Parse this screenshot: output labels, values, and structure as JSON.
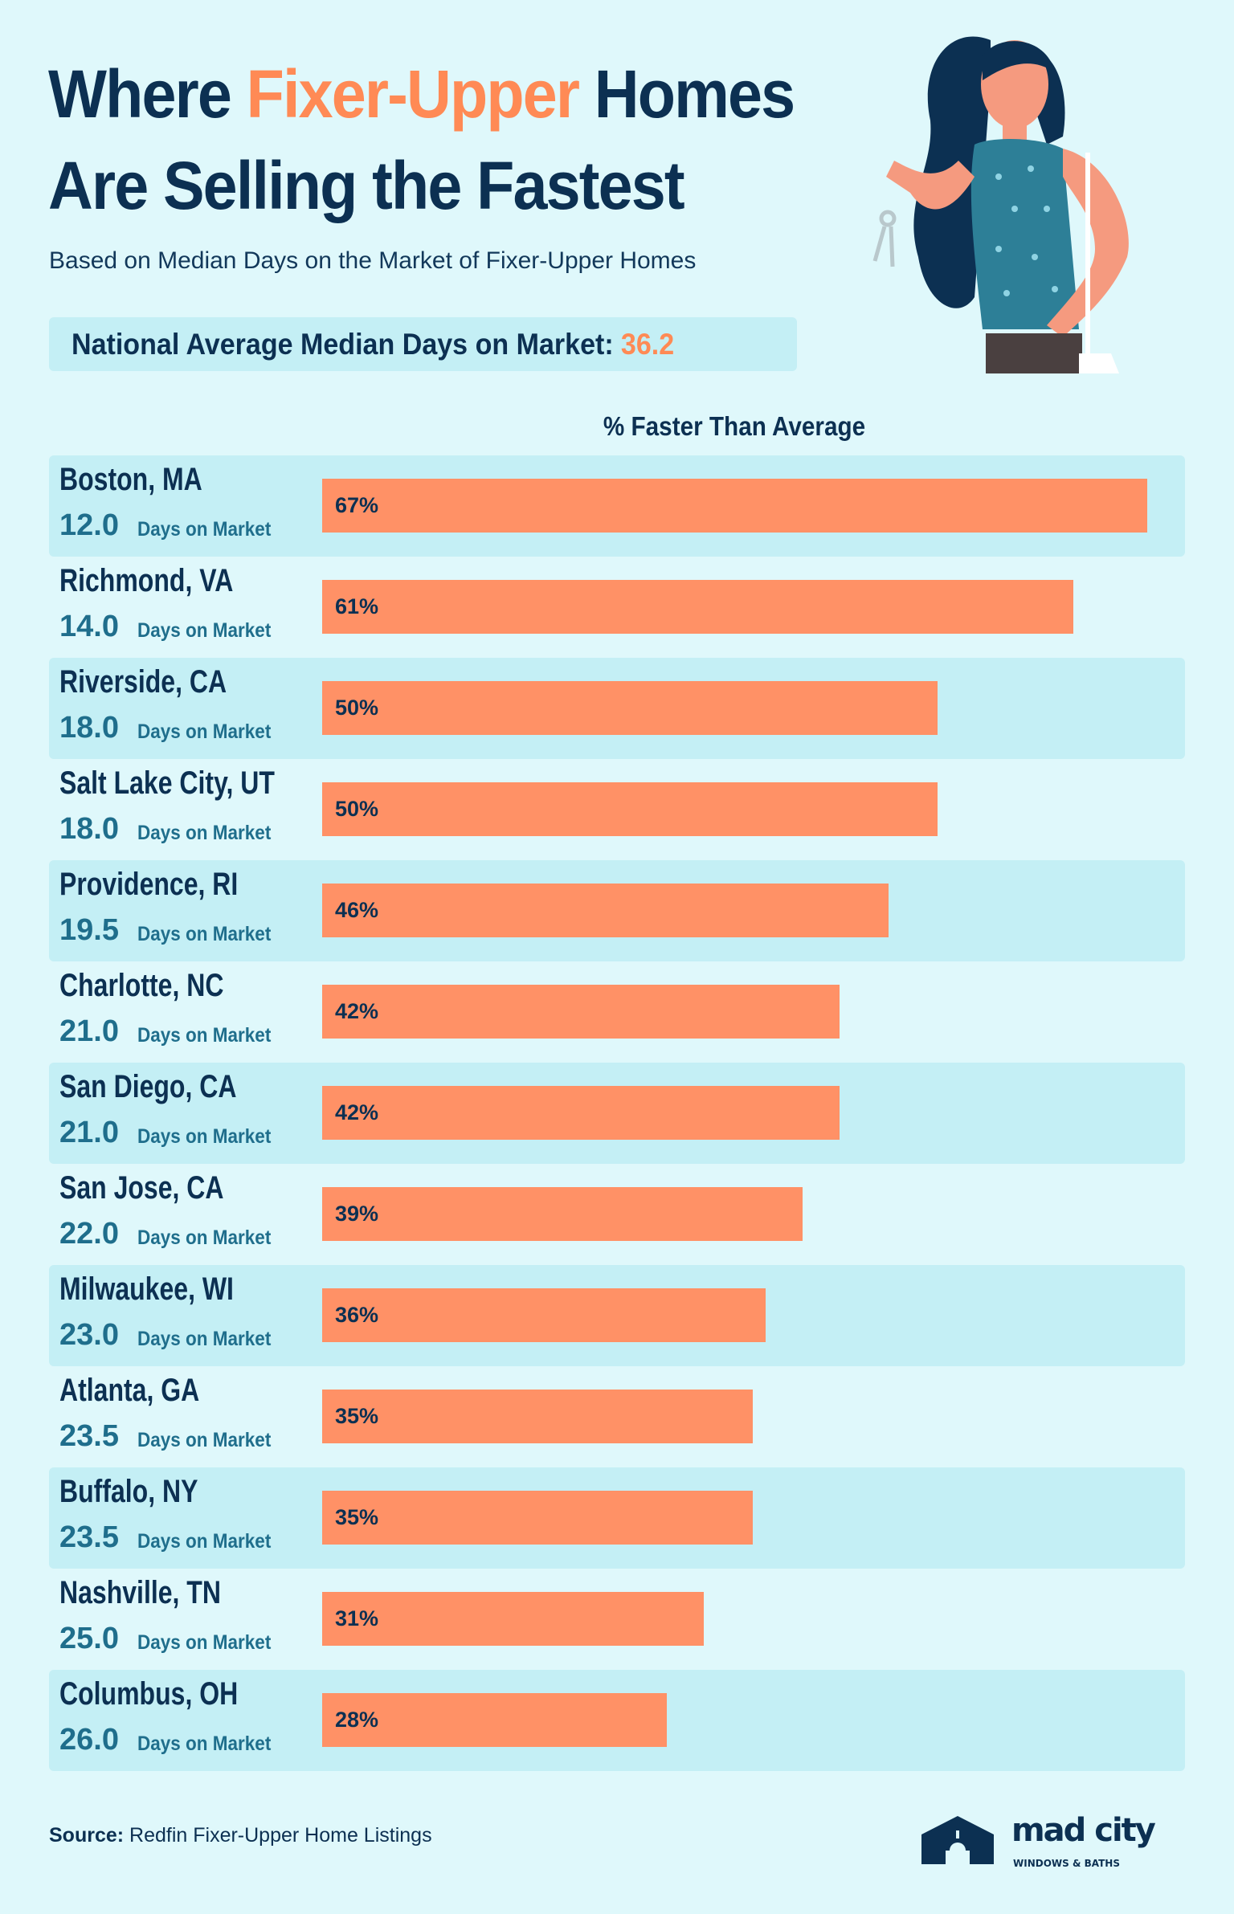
{
  "header": {
    "title_part1": "Where ",
    "title_highlight": "Fixer-Upper",
    "title_part2": " Homes",
    "title_line2": "Are Selling the Fastest",
    "subtitle": "Based on Median Days on the Market of Fixer-Upper Homes",
    "national_label": "National Average Median Days on Market:",
    "national_value": "36.2"
  },
  "colors": {
    "background": "#dff8fb",
    "band": "#c4eff5",
    "bar": "#ff9166",
    "navy": "#0c3052",
    "accent": "#ff8a55",
    "teal": "#1f6e8c"
  },
  "chart_data": {
    "type": "bar",
    "orientation": "horizontal",
    "title": "% Faster Than Average",
    "value_suffix": "%",
    "days_label": "Days on Market",
    "categories": [
      "Boston, MA",
      "Richmond, VA",
      "Riverside, CA",
      "Salt Lake City, UT",
      "Providence, RI",
      "Charlotte, NC",
      "San Diego, CA",
      "San Jose, CA",
      "Milwaukee, WI",
      "Atlanta, GA",
      "Buffalo, NY",
      "Nashville, TN",
      "Columbus, OH"
    ],
    "days": [
      "12.0",
      "14.0",
      "18.0",
      "18.0",
      "19.5",
      "21.0",
      "21.0",
      "22.0",
      "23.0",
      "23.5",
      "23.5",
      "25.0",
      "26.0"
    ],
    "values": [
      67,
      61,
      50,
      50,
      46,
      42,
      42,
      39,
      36,
      35,
      35,
      31,
      28
    ]
  },
  "footer": {
    "source_label": "Source:",
    "source_text": " Redfin Fixer-Upper Home Listings",
    "logo_text": "mad city",
    "logo_sub": "WINDOWS & BATHS"
  }
}
